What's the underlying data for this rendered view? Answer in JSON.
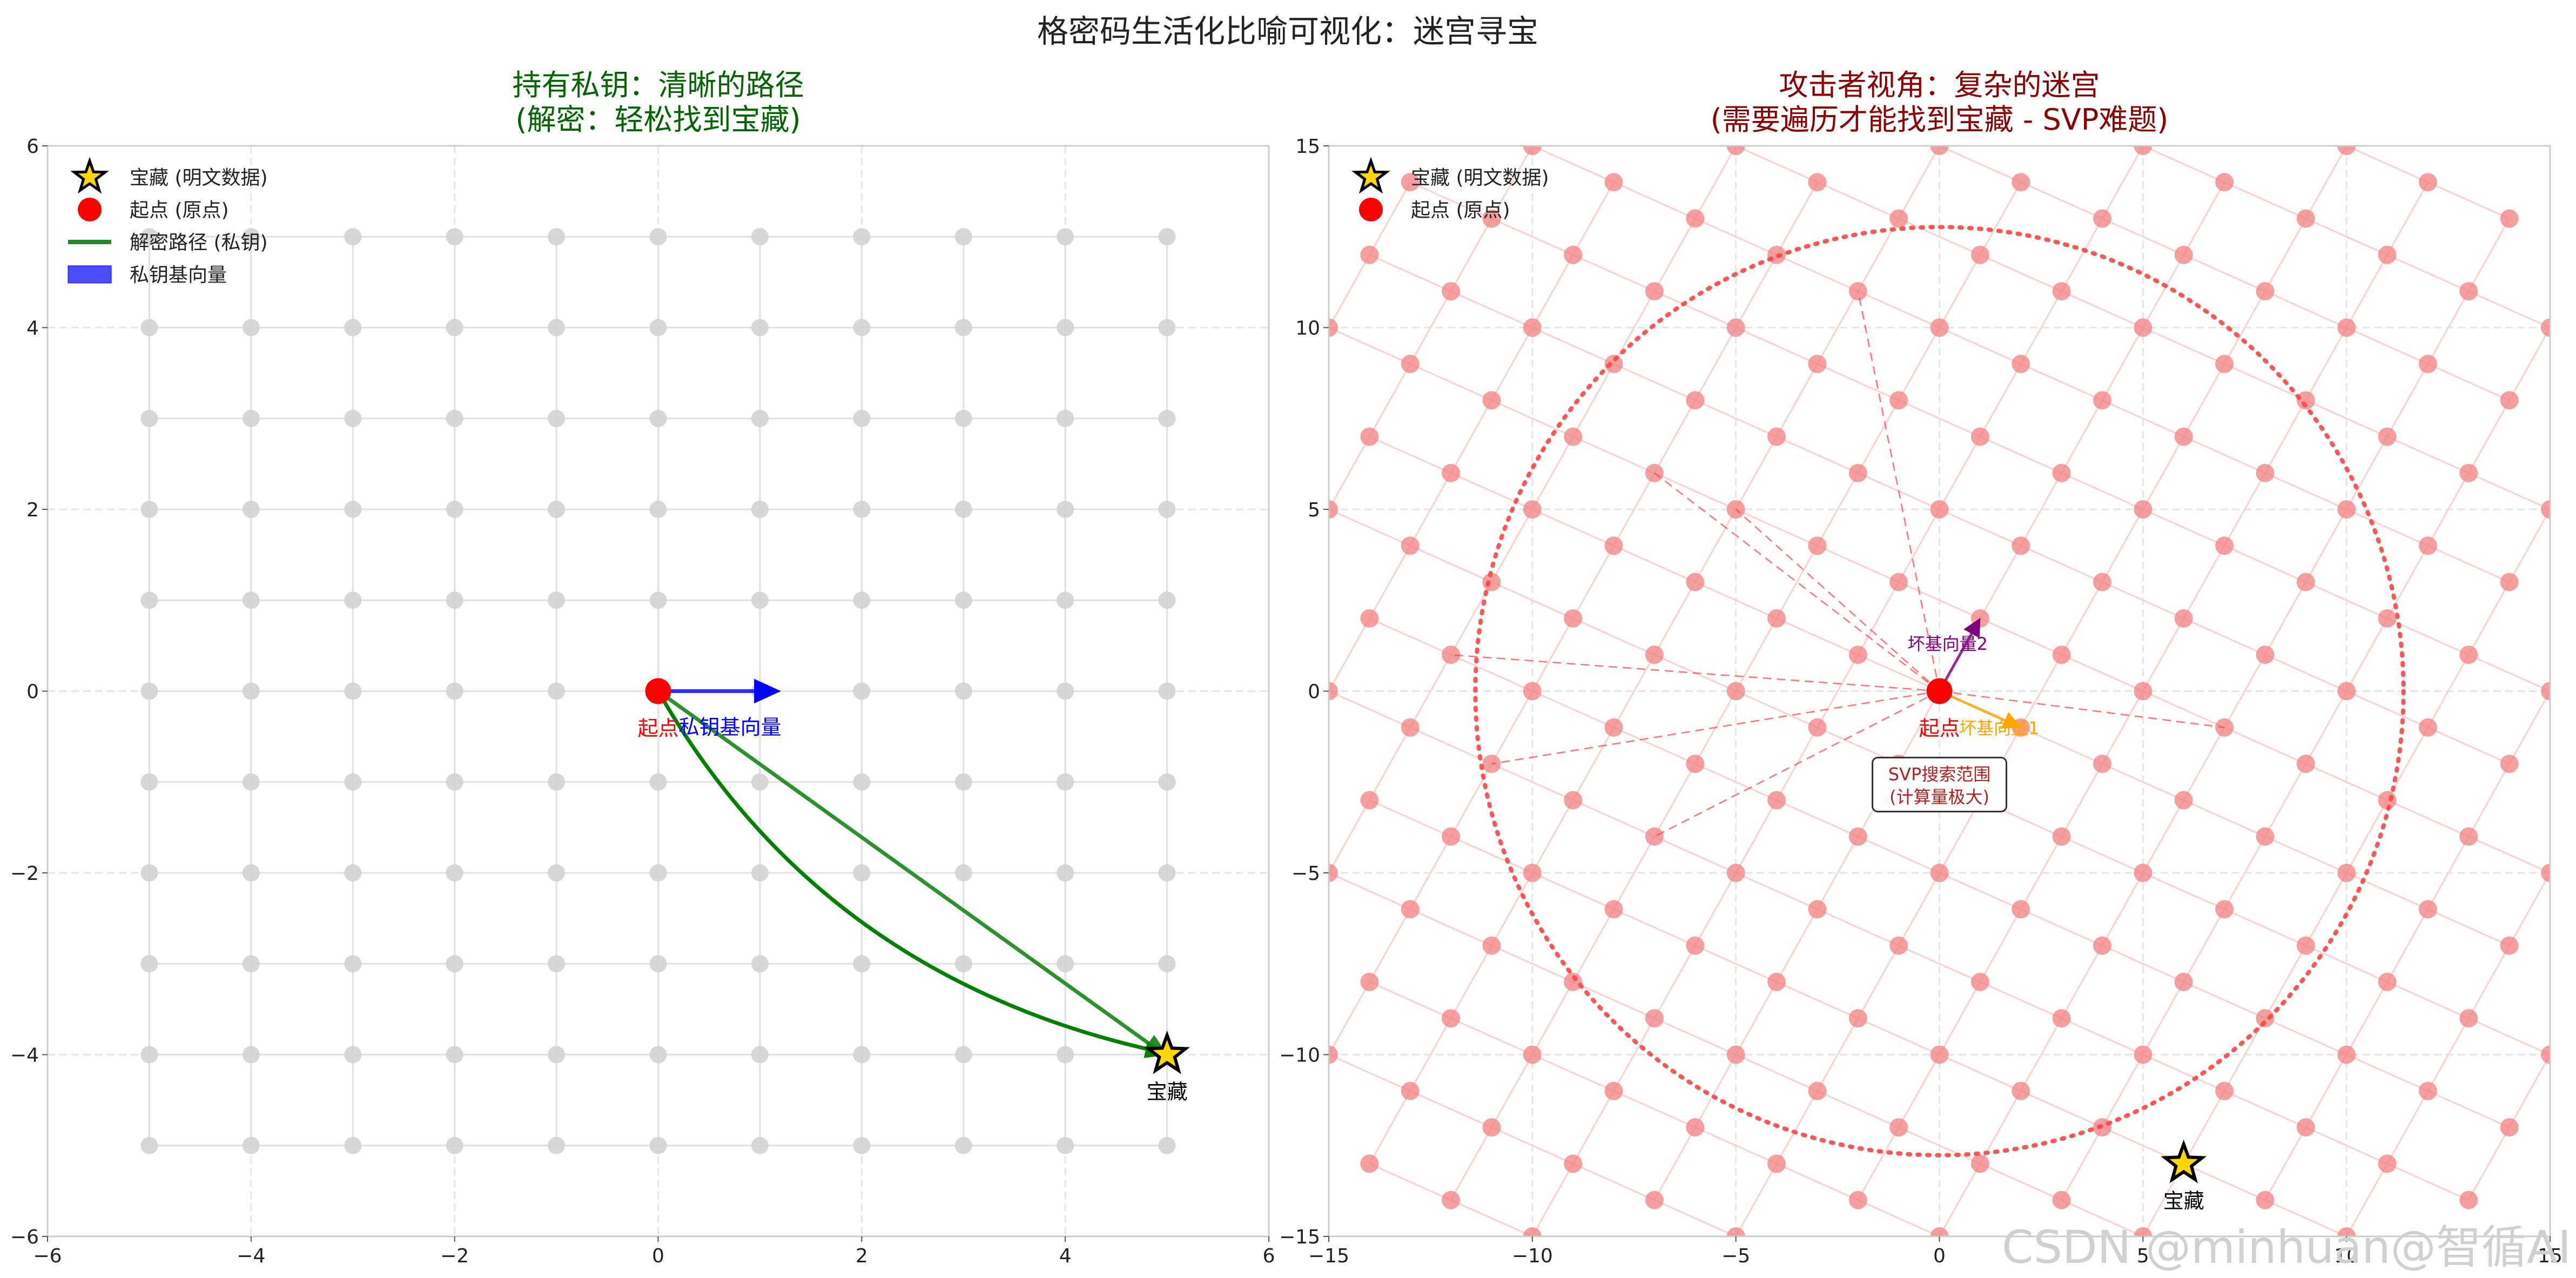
{
  "figure": {
    "title": "格密码生活化比喻可视化：迷宫寻宝",
    "watermark": "CSDN @minhuan@智循AI"
  },
  "chart_data": [
    {
      "type": "scatter",
      "title_line1": "持有私钥：清晰的路径",
      "title_line2": "(解密：轻松找到宝藏)",
      "title_color": "#006400",
      "xlim": [
        -6,
        6
      ],
      "ylim": [
        -6,
        6
      ],
      "xticks": [
        -6,
        -4,
        -2,
        0,
        2,
        4,
        6
      ],
      "yticks": [
        -6,
        -4,
        -2,
        0,
        2,
        4,
        6
      ],
      "grid": true,
      "legend_position": "top-left",
      "legend": [
        {
          "label": "宝藏 (明文数据)",
          "marker": "star",
          "color": "#FFD700"
        },
        {
          "label": "起点 (原点)",
          "marker": "circle",
          "color": "#FF0000"
        },
        {
          "label": "解密路径 (私钥)",
          "marker": "line",
          "color": "#228B22"
        },
        {
          "label": "私钥基向量",
          "marker": "rect",
          "color": "#0000FF"
        }
      ],
      "lattice": {
        "basis1": [
          1,
          0
        ],
        "basis2": [
          0,
          1
        ],
        "i_range": [
          -5,
          5
        ],
        "j_range": [
          -5,
          5
        ],
        "xlim_clip": [
          -5,
          5
        ],
        "ylim_clip": [
          -5,
          5
        ],
        "color": "#cccccc"
      },
      "origin": {
        "x": 0,
        "y": 0,
        "label": "起点"
      },
      "treasure": {
        "x": 5,
        "y": -4,
        "label": "宝藏"
      },
      "basis_vectors": [
        {
          "x": 1.2,
          "y": 0,
          "label": "私钥基向量",
          "color": "#0000FF"
        }
      ],
      "paths": [
        {
          "type": "straight",
          "from": [
            0,
            0
          ],
          "to": [
            5,
            -4
          ],
          "color": "#228B22"
        },
        {
          "type": "curved",
          "from": [
            0,
            0
          ],
          "to": [
            5,
            -4
          ],
          "color": "#008000"
        }
      ]
    },
    {
      "type": "scatter",
      "title_line1": "攻击者视角：复杂的迷宫",
      "title_line2": "(需要遍历才能找到宝藏 - SVP难题)",
      "title_color": "#8B0000",
      "xlim": [
        -15,
        15
      ],
      "ylim": [
        -15,
        15
      ],
      "xticks": [
        -15,
        -10,
        -5,
        0,
        5,
        10,
        15
      ],
      "yticks": [
        -15,
        -10,
        -5,
        0,
        5,
        10,
        15
      ],
      "grid": true,
      "legend_position": "top-left",
      "legend": [
        {
          "label": "宝藏 (明文数据)",
          "marker": "star",
          "color": "#FFD700"
        },
        {
          "label": "起点 (原点)",
          "marker": "circle",
          "color": "#FF0000"
        }
      ],
      "lattice": {
        "basis1": [
          2,
          -1
        ],
        "basis2": [
          1,
          2
        ],
        "i_range": [
          -8,
          8
        ],
        "j_range": [
          -8,
          8
        ],
        "xlim_clip": [
          -15,
          15
        ],
        "ylim_clip": [
          -15,
          15
        ],
        "color": "#F08080"
      },
      "origin": {
        "x": 0,
        "y": 0,
        "label": "起点"
      },
      "treasure": {
        "x": 6,
        "y": -13,
        "label": "宝藏"
      },
      "basis_vectors": [
        {
          "x": 2,
          "y": -1,
          "label": "坏基向量1",
          "color": "#FFA500"
        },
        {
          "x": 1,
          "y": 2,
          "label": "坏基向量2",
          "color": "#800080"
        }
      ],
      "search_circle": {
        "radius": 11.4,
        "color": "#FF4444"
      },
      "search_rays": [
        [
          -7,
          6
        ],
        [
          -5,
          5
        ],
        [
          -12,
          1
        ],
        [
          -11,
          -2
        ],
        [
          -7,
          -4
        ],
        [
          -2,
          11
        ],
        [
          7,
          -1
        ]
      ],
      "annotation": {
        "line1": "SVP搜索范围",
        "line2": "(计算量极大)",
        "x": 0,
        "y": -2.6
      }
    }
  ]
}
